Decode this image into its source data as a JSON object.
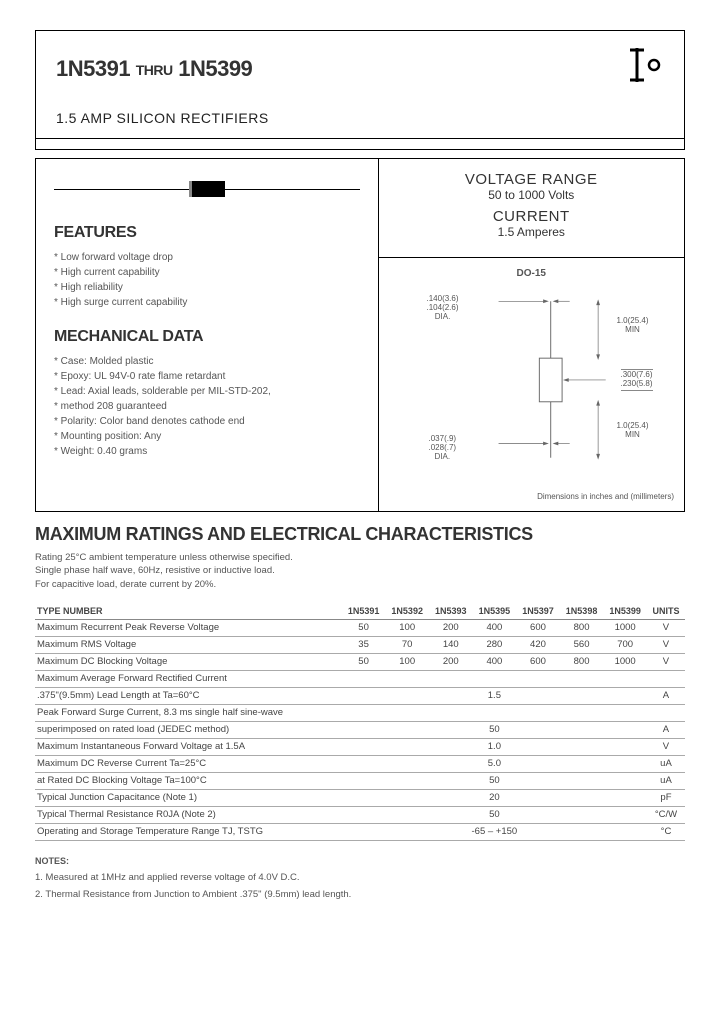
{
  "header": {
    "part_from": "1N5391",
    "thru": "THRU",
    "part_to": "1N5399",
    "subtitle": "1.5 AMP SILICON RECTIFIERS"
  },
  "voltage_range": {
    "title": "VOLTAGE RANGE",
    "value": "50 to 1000 Volts",
    "current_title": "CURRENT",
    "current_value": "1.5 Amperes"
  },
  "package": {
    "name": "DO-15",
    "dia1": ".140(3.6)\n.104(2.6)\nDIA.",
    "len1": "1.0(25.4)\nMIN",
    "body_w": ".300(7.6)\n.230(5.8)",
    "len2": "1.0(25.4)\nMIN",
    "dia2": ".037(.9)\n.028(.7)\nDIA.",
    "note": "Dimensions in inches and (millimeters)"
  },
  "features": {
    "title": "FEATURES",
    "items": [
      "Low forward voltage drop",
      "High current capability",
      "High reliability",
      "High surge current capability"
    ]
  },
  "mechanical": {
    "title": "MECHANICAL DATA",
    "items": [
      "Case: Molded plastic",
      "Epoxy: UL 94V-0 rate flame retardant",
      "Lead: Axial leads, solderable per MIL-STD-202,",
      "        method 208 guaranteed",
      "Polarity: Color band denotes cathode end",
      "Mounting position: Any",
      "Weight: 0.40 grams"
    ]
  },
  "ratings": {
    "title": "MAXIMUM RATINGS AND ELECTRICAL CHARACTERISTICS",
    "note": "Rating 25°C ambient temperature unless otherwise specified.\nSingle phase half wave, 60Hz, resistive or inductive load.\nFor capacitive load, derate current by 20%.",
    "type_label": "TYPE NUMBER",
    "columns": [
      "1N5391",
      "1N5392",
      "1N5393",
      "1N5395",
      "1N5397",
      "1N5398",
      "1N5399",
      "UNITS"
    ],
    "rows": [
      {
        "label": "Maximum Recurrent Peak Reverse Voltage",
        "vals": [
          "50",
          "100",
          "200",
          "400",
          "600",
          "800",
          "1000",
          "V"
        ]
      },
      {
        "label": "Maximum RMS Voltage",
        "vals": [
          "35",
          "70",
          "140",
          "280",
          "420",
          "560",
          "700",
          "V"
        ]
      },
      {
        "label": "Maximum DC Blocking Voltage",
        "vals": [
          "50",
          "100",
          "200",
          "400",
          "600",
          "800",
          "1000",
          "V"
        ]
      },
      {
        "label": "Maximum Average Forward Rectified Current",
        "vals": [
          "",
          "",
          "",
          "",
          "",
          "",
          "",
          ""
        ]
      },
      {
        "label": ".375\"(9.5mm) Lead Length at Ta=60°C",
        "vals": [
          "",
          "",
          "",
          "1.5",
          "",
          "",
          "",
          "A"
        ],
        "span": true
      },
      {
        "label": "Peak Forward Surge Current, 8.3 ms single half sine-wave",
        "vals": [
          "",
          "",
          "",
          "",
          "",
          "",
          "",
          ""
        ]
      },
      {
        "label": "superimposed on rated load (JEDEC method)",
        "vals": [
          "",
          "",
          "",
          "50",
          "",
          "",
          "",
          "A"
        ],
        "span": true
      },
      {
        "label": "Maximum Instantaneous Forward Voltage at 1.5A",
        "vals": [
          "",
          "",
          "",
          "1.0",
          "",
          "",
          "",
          "V"
        ],
        "span": true
      },
      {
        "label": "Maximum DC Reverse Current            Ta=25°C",
        "vals": [
          "",
          "",
          "",
          "5.0",
          "",
          "",
          "",
          "uA"
        ],
        "span": true
      },
      {
        "label": "at Rated DC Blocking Voltage            Ta=100°C",
        "vals": [
          "",
          "",
          "",
          "50",
          "",
          "",
          "",
          "uA"
        ],
        "span": true
      },
      {
        "label": "Typical Junction Capacitance (Note 1)",
        "vals": [
          "",
          "",
          "",
          "20",
          "",
          "",
          "",
          "pF"
        ],
        "span": true
      },
      {
        "label": "Typical Thermal Resistance R0JA (Note 2)",
        "vals": [
          "",
          "",
          "",
          "50",
          "",
          "",
          "",
          "°C/W"
        ],
        "span": true
      },
      {
        "label": "Operating and Storage Temperature Range TJ, TSTG",
        "vals": [
          "",
          "",
          "",
          "-65 – +150",
          "",
          "",
          "",
          "°C"
        ],
        "span": true
      }
    ]
  },
  "notes": {
    "title": "NOTES:",
    "items": [
      "1. Measured at 1MHz and applied reverse voltage of 4.0V D.C.",
      "2. Thermal Resistance from Junction to Ambient .375\" (9.5mm) lead length."
    ]
  }
}
